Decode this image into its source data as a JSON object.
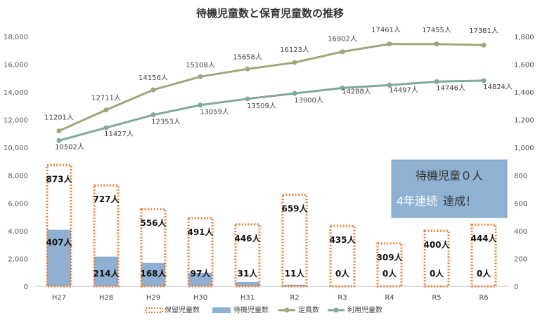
{
  "chart_data": {
    "type": "bar",
    "title": "待機児童数と保育児童数の推移",
    "categories": [
      "H27",
      "H28",
      "H29",
      "H30",
      "H31",
      "R2",
      "R3",
      "R4",
      "R5",
      "R6"
    ],
    "y_left": {
      "ticks": [
        "0",
        "2,000",
        "4,000",
        "6,000",
        "8,000",
        "10,000",
        "12,000",
        "14,000",
        "16,000",
        "18,000"
      ],
      "ylim": [
        0,
        18000
      ]
    },
    "y_right": {
      "ticks": [
        "0",
        "200",
        "400",
        "600",
        "800",
        "1,000",
        "1,200",
        "1,400",
        "1,600",
        "1,800"
      ],
      "ylim": [
        0,
        1800
      ]
    },
    "bar_series": [
      {
        "name": "保留児童数",
        "axis": "right",
        "style": "dotted-outline",
        "color": "#ED7D31",
        "values": [
          873,
          727,
          556,
          491,
          446,
          659,
          435,
          309,
          400,
          444
        ],
        "labels": [
          "873人",
          "727人",
          "556人",
          "491人",
          "446人",
          "659人",
          "435人",
          "309人",
          "400人",
          "444人"
        ]
      },
      {
        "name": "待機児童数",
        "axis": "right",
        "style": "fill",
        "color": "#8FAFD3",
        "values": [
          407,
          214,
          168,
          97,
          31,
          11,
          0,
          0,
          0,
          0
        ],
        "labels": [
          "407人",
          "214人",
          "168人",
          "97人",
          "31人",
          "11人",
          "0人",
          "0人",
          "0人",
          "0人"
        ]
      }
    ],
    "line_series": [
      {
        "name": "定員数",
        "axis": "left",
        "color": "#A3A47A",
        "values": [
          11201,
          12711,
          14156,
          15108,
          15658,
          16123,
          16902,
          17461,
          17455,
          17381
        ],
        "labels": [
          "11201人",
          "12711人",
          "14156人",
          "15108人",
          "15658人",
          "16123人",
          "16902人",
          "17461人",
          "17455人",
          "17381人"
        ]
      },
      {
        "name": "利用児童数",
        "axis": "left",
        "color": "#7FA99A",
        "values": [
          10502,
          11427,
          12353,
          13059,
          13509,
          13900,
          14288,
          14497,
          14746,
          14824
        ],
        "labels": [
          "10502人",
          "11427人",
          "12353人",
          "13059人",
          "13509人",
          "13900人",
          "14288人",
          "14497人",
          "14746人",
          "14824人"
        ]
      }
    ],
    "legend": {
      "placement": "bottom",
      "items": [
        "保留児童数",
        "待機児童数",
        "定員数",
        "利用児童数"
      ]
    },
    "annotation": {
      "line1": "待機児童０人",
      "line2a": "4年連続",
      "line2b": "達成！"
    }
  }
}
